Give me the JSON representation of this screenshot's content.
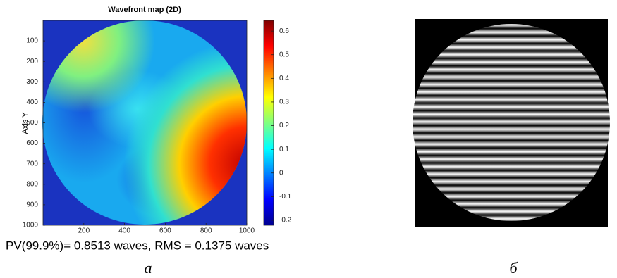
{
  "chart_data": [
    {
      "type": "heatmap",
      "title": "Wavefront map (2D)",
      "y_label": "Axis Y",
      "xlim": [
        0,
        1000
      ],
      "ylim": [
        0,
        1000
      ],
      "y_reversed": true,
      "xticks": [
        200,
        400,
        600,
        800,
        1000
      ],
      "yticks": [
        100,
        200,
        300,
        400,
        500,
        600,
        700,
        800,
        900,
        1000
      ],
      "colormap": "jet",
      "clim": [
        -0.221,
        0.645
      ],
      "cticks": [
        -0.2,
        -0.1,
        0,
        0.1,
        0.2,
        0.3,
        0.4,
        0.5,
        0.6
      ],
      "annotation": "PV(99.9%)= 0.8513 waves, RMS = 0.1375 waves",
      "caption": "а"
    },
    {
      "type": "image",
      "caption": "б"
    }
  ]
}
